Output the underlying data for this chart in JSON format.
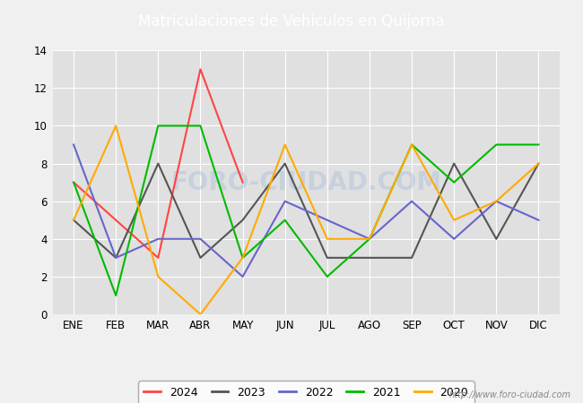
{
  "title": "Matriculaciones de Vehiculos en Quijorna",
  "title_color": "#ffffff",
  "title_bg_color": "#4a86c8",
  "months": [
    "ENE",
    "FEB",
    "MAR",
    "ABR",
    "MAY",
    "JUN",
    "JUL",
    "AGO",
    "SEP",
    "OCT",
    "NOV",
    "DIC"
  ],
  "series": {
    "2024": {
      "color": "#ff4444",
      "data": [
        7,
        5,
        3,
        13,
        7,
        null,
        null,
        null,
        null,
        null,
        null,
        null
      ]
    },
    "2023": {
      "color": "#555555",
      "data": [
        5,
        3,
        8,
        3,
        5,
        8,
        3,
        3,
        3,
        8,
        4,
        8
      ]
    },
    "2022": {
      "color": "#6666cc",
      "data": [
        9,
        3,
        4,
        4,
        2,
        6,
        5,
        4,
        6,
        4,
        6,
        5
      ]
    },
    "2021": {
      "color": "#00bb00",
      "data": [
        7,
        1,
        10,
        10,
        3,
        5,
        2,
        4,
        9,
        7,
        9,
        9
      ]
    },
    "2020": {
      "color": "#ffaa00",
      "data": [
        5,
        10,
        2,
        0,
        3,
        9,
        4,
        4,
        9,
        5,
        6,
        8
      ]
    }
  },
  "ylim": [
    0,
    14
  ],
  "yticks": [
    0,
    2,
    4,
    6,
    8,
    10,
    12,
    14
  ],
  "plot_bg_color": "#e0e0e0",
  "grid_color": "#ffffff",
  "watermark": "FORO-CIUDAD.COM",
  "url": "http://www.foro-ciudad.com",
  "legend_order": [
    "2024",
    "2023",
    "2022",
    "2021",
    "2020"
  ]
}
